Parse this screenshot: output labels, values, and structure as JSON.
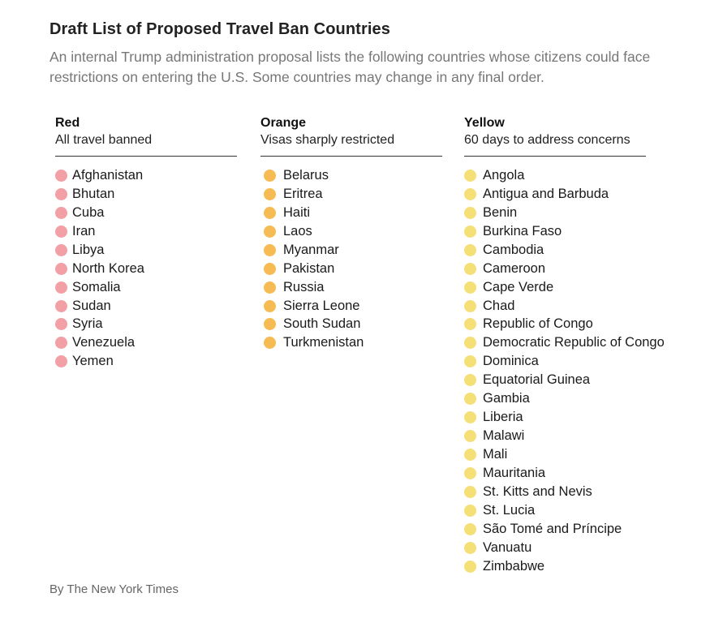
{
  "title": "Draft List of Proposed Travel Ban Countries",
  "subtitle": "An internal Trump administration proposal lists the following countries whose citizens could face restrictions on entering the U.S. Some countries may change in any final order.",
  "credit": "By The New York Times",
  "columns": [
    {
      "label": "Red",
      "description": "All travel banned",
      "dot_color": "#f2a0a5",
      "countries": [
        "Afghanistan",
        "Bhutan",
        "Cuba",
        "Iran",
        "Libya",
        "North Korea",
        "Somalia",
        "Sudan",
        "Syria",
        "Venezuela",
        "Yemen"
      ]
    },
    {
      "label": "Orange",
      "description": "Visas sharply restricted",
      "dot_color": "#f6bb52",
      "countries": [
        "Belarus",
        "Eritrea",
        "Haiti",
        "Laos",
        "Myanmar",
        "Pakistan",
        "Russia",
        "Sierra Leone",
        "South Sudan",
        "Turkmenistan"
      ]
    },
    {
      "label": "Yellow",
      "description": "60 days to address concerns",
      "dot_color": "#f5df77",
      "countries": [
        "Angola",
        "Antigua and Barbuda",
        "Benin",
        "Burkina Faso",
        "Cambodia",
        "Cameroon",
        "Cape Verde",
        "Chad",
        "Republic of Congo",
        "Democratic Republic of Congo",
        "Dominica",
        "Equatorial Guinea",
        "Gambia",
        "Liberia",
        "Malawi",
        "Mali",
        "Mauritania",
        "St. Kitts and Nevis",
        "St. Lucia",
        "São Tomé and Príncipe",
        "Vanuatu",
        "Zimbabwe"
      ]
    }
  ]
}
